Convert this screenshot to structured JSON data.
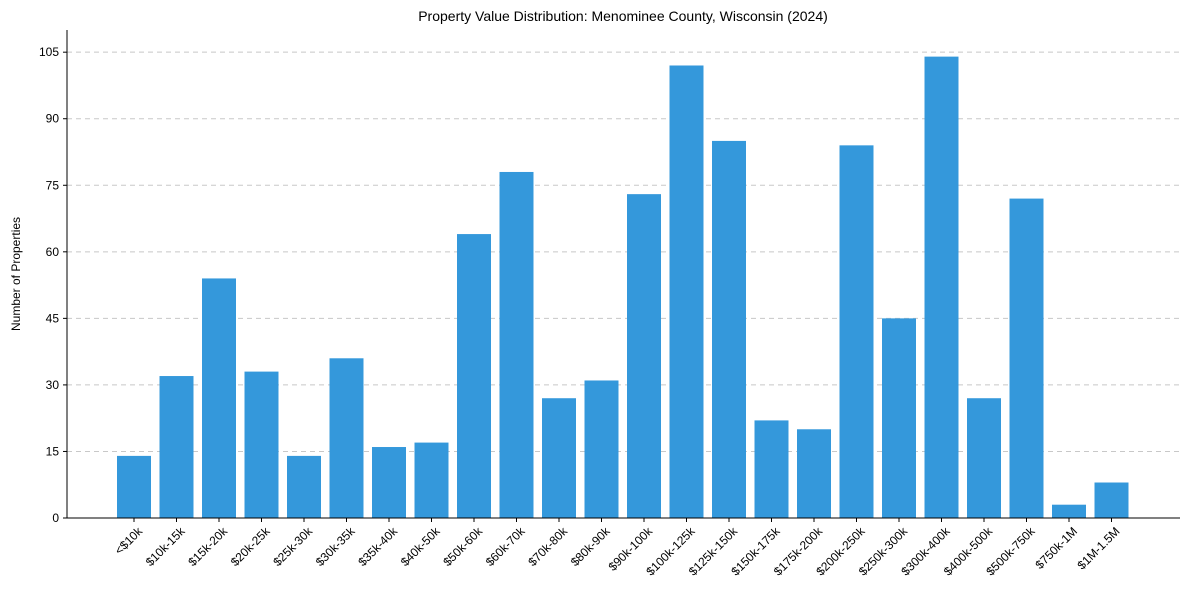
{
  "chart_data": {
    "type": "bar",
    "title": "Property Value Distribution: Menominee County, Wisconsin (2024)",
    "xlabel": "",
    "ylabel": "Number of Properties",
    "ylim": [
      0,
      110
    ],
    "yticks": [
      0,
      15,
      30,
      45,
      60,
      75,
      90,
      105
    ],
    "grid": "y-dashed",
    "bar_color": "#3498db",
    "categories": [
      "<$10k",
      "$10k-15k",
      "$15k-20k",
      "$20k-25k",
      "$25k-30k",
      "$30k-35k",
      "$35k-40k",
      "$40k-50k",
      "$50k-60k",
      "$60k-70k",
      "$70k-80k",
      "$80k-90k",
      "$90k-100k",
      "$100k-125k",
      "$125k-150k",
      "$150k-175k",
      "$175k-200k",
      "$200k-250k",
      "$250k-300k",
      "$300k-400k",
      "$400k-500k",
      "$500k-750k",
      "$750k-1M",
      "$1M-1.5M"
    ],
    "values": [
      14,
      32,
      54,
      33,
      14,
      36,
      16,
      17,
      64,
      78,
      27,
      31,
      73,
      102,
      85,
      22,
      20,
      84,
      45,
      104,
      27,
      72,
      3,
      8
    ]
  }
}
